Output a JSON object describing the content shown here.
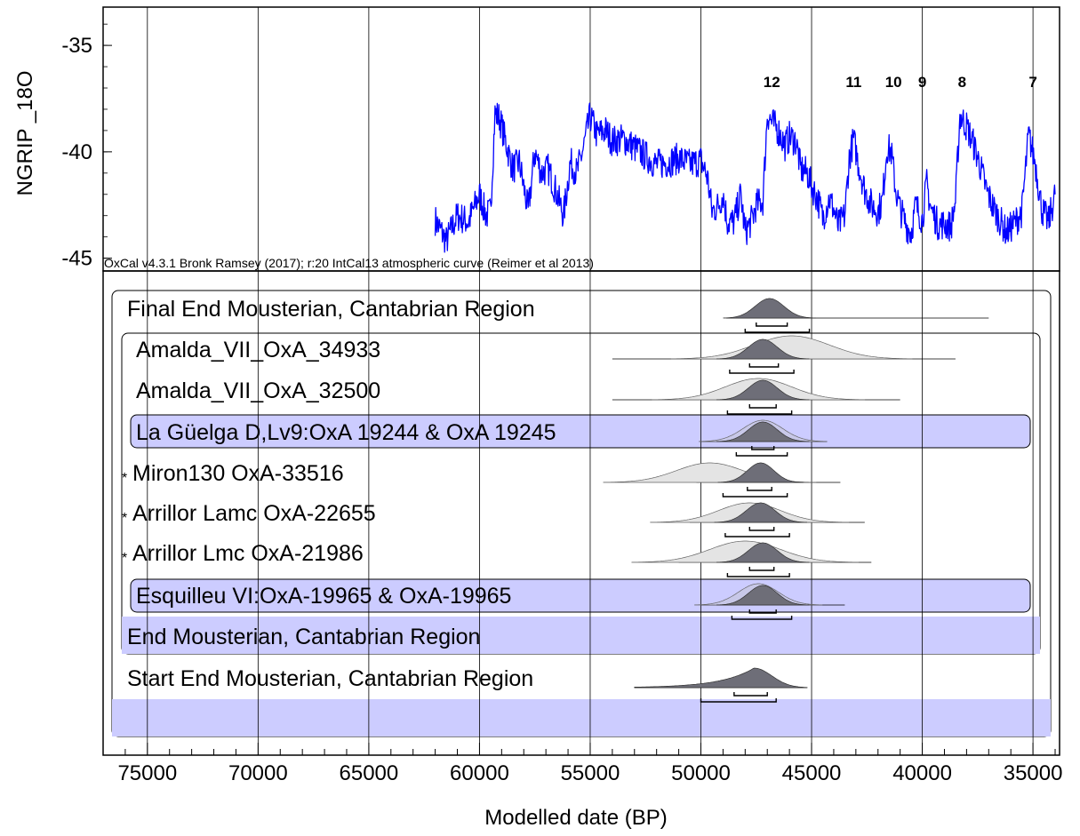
{
  "chart_data": {
    "type": "area",
    "title": "",
    "xlabel": "Modelled date (BP)",
    "ylabel": "NGRIP _18O",
    "credit": "OxCal v4.3.1 Bronk Ramsey (2017); r:20 IntCal13 atmospheric curve (Reimer et al 2013)",
    "xlim": [
      77000,
      33800
    ],
    "x_reversed": true,
    "x_ticks": [
      75000,
      70000,
      65000,
      60000,
      55000,
      50000,
      45000,
      40000,
      35000
    ],
    "x_tick_labels": [
      "75000",
      "70000",
      "65000",
      "60000",
      "55000",
      "50000",
      "45000",
      "40000",
      "35000"
    ],
    "top_panel": {
      "ylim": [
        -45.6,
        -33.2
      ],
      "y_ticks": [
        -35,
        -40,
        -45
      ],
      "y_tick_labels": [
        "-35",
        "-40",
        "-45"
      ],
      "line_color": "#0000ff",
      "ngrip_anchors": [
        [
          62000,
          -43.2
        ],
        [
          61500,
          -44.2
        ],
        [
          61000,
          -43.0
        ],
        [
          60500,
          -43.3
        ],
        [
          60000,
          -42.0
        ],
        [
          59700,
          -43.0
        ],
        [
          59500,
          -42.8
        ],
        [
          59300,
          -38.2
        ],
        [
          59100,
          -38.4
        ],
        [
          58800,
          -39.6
        ],
        [
          58500,
          -40.8
        ],
        [
          58200,
          -40.5
        ],
        [
          57800,
          -42.8
        ],
        [
          57500,
          -40.0
        ],
        [
          57200,
          -41.0
        ],
        [
          56900,
          -40.8
        ],
        [
          56500,
          -42.0
        ],
        [
          56200,
          -43.0
        ],
        [
          55900,
          -40.5
        ],
        [
          55600,
          -41.0
        ],
        [
          55300,
          -39.8
        ],
        [
          55000,
          -38.3
        ],
        [
          54700,
          -39.2
        ],
        [
          54300,
          -39.0
        ],
        [
          54000,
          -39.5
        ],
        [
          53500,
          -39.4
        ],
        [
          53000,
          -39.8
        ],
        [
          52500,
          -40.2
        ],
        [
          52000,
          -40.6
        ],
        [
          51500,
          -40.5
        ],
        [
          51000,
          -40.3
        ],
        [
          50500,
          -40.6
        ],
        [
          50000,
          -40.4
        ],
        [
          49700,
          -41.2
        ],
        [
          49500,
          -42.8
        ],
        [
          49200,
          -42.5
        ],
        [
          49000,
          -42.0
        ],
        [
          48800,
          -43.3
        ],
        [
          48500,
          -43.3
        ],
        [
          48200,
          -42.0
        ],
        [
          48000,
          -43.8
        ],
        [
          47700,
          -43.2
        ],
        [
          47500,
          -42.5
        ],
        [
          47200,
          -42.3
        ],
        [
          47000,
          -38.2
        ],
        [
          46800,
          -38.6
        ],
        [
          46500,
          -39.0
        ],
        [
          46200,
          -39.7
        ],
        [
          46000,
          -39.3
        ],
        [
          45700,
          -39.5
        ],
        [
          45500,
          -40.8
        ],
        [
          45200,
          -41.0
        ],
        [
          45000,
          -41.6
        ],
        [
          44700,
          -42.3
        ],
        [
          44500,
          -43.1
        ],
        [
          44200,
          -42.2
        ],
        [
          44000,
          -42.7
        ],
        [
          43800,
          -43.5
        ],
        [
          43500,
          -43.0
        ],
        [
          43300,
          -40.3
        ],
        [
          43100,
          -39.4
        ],
        [
          42900,
          -40.5
        ],
        [
          42600,
          -41.8
        ],
        [
          42300,
          -42.5
        ],
        [
          42000,
          -42.8
        ],
        [
          41800,
          -42.3
        ],
        [
          41600,
          -39.8
        ],
        [
          41400,
          -40.0
        ],
        [
          41200,
          -41.8
        ],
        [
          41000,
          -42.7
        ],
        [
          40700,
          -43.5
        ],
        [
          40500,
          -43.8
        ],
        [
          40300,
          -42.5
        ],
        [
          40000,
          -43.2
        ],
        [
          39800,
          -41.5
        ],
        [
          39600,
          -42.7
        ],
        [
          39300,
          -43.4
        ],
        [
          39000,
          -43.4
        ],
        [
          38700,
          -43.5
        ],
        [
          38500,
          -42.3
        ],
        [
          38300,
          -38.3
        ],
        [
          38000,
          -38.8
        ],
        [
          37700,
          -39.6
        ],
        [
          37400,
          -40.6
        ],
        [
          37100,
          -41.8
        ],
        [
          36800,
          -42.6
        ],
        [
          36500,
          -43.2
        ],
        [
          36200,
          -43.8
        ],
        [
          35800,
          -43.3
        ],
        [
          35500,
          -42.8
        ],
        [
          35200,
          -39.2
        ],
        [
          34900,
          -40.5
        ],
        [
          34600,
          -42.7
        ],
        [
          34300,
          -43.3
        ],
        [
          34000,
          -42.0
        ]
      ],
      "interstadial_labels": [
        {
          "text": "12",
          "x": 46800
        },
        {
          "text": "11",
          "x": 43100
        },
        {
          "text": "10",
          "x": 41300
        },
        {
          "text": "9",
          "x": 40000
        },
        {
          "text": "8",
          "x": 38200
        },
        {
          "text": "7",
          "x": 35000
        }
      ]
    },
    "rows": [
      {
        "label": "Final End Mousterian, Cantabrian Region",
        "star": false,
        "kind": "boundary",
        "likelihood": null,
        "posterior": {
          "mean": 46900,
          "sd": 650,
          "tail_to": 37000,
          "amp": 0.55
        },
        "range68": [
          47500,
          46100
        ],
        "range95": [
          48000,
          45100
        ]
      },
      {
        "label": "Amalda_VII_OxA_34933",
        "star": false,
        "kind": "date",
        "likelihood": {
          "mean": 45900,
          "sd": 1700,
          "from": 54000,
          "to": 38500,
          "amp": 0.65
        },
        "posterior": {
          "mean": 47200,
          "sd": 650,
          "amp": 0.55
        },
        "range68": [
          47800,
          46500
        ],
        "range95": [
          48700,
          45800
        ]
      },
      {
        "label": "Amalda_VII_OxA_32500",
        "star": false,
        "kind": "date",
        "likelihood": {
          "mean": 47400,
          "sd": 1500,
          "from": 54000,
          "to": 41000,
          "amp": 0.6
        },
        "posterior": {
          "mean": 47200,
          "sd": 650,
          "amp": 0.55
        },
        "range68": [
          47800,
          46600
        ],
        "range95": [
          48800,
          45900
        ]
      },
      {
        "label": "La Güelga D,Lv9:OxA 19244 & OxA 19245",
        "star": false,
        "kind": "combine",
        "likelihood": {
          "mean": 47200,
          "sd": 900,
          "from": 50000,
          "to": 44300,
          "amp": 0.6
        },
        "posterior": {
          "mean": 47200,
          "sd": 650,
          "amp": 0.55
        },
        "range68": [
          47700,
          46700
        ],
        "range95": [
          48400,
          46100
        ]
      },
      {
        "label": "Miron130 OxA-33516",
        "star": true,
        "kind": "date",
        "likelihood": {
          "mean": 49600,
          "sd": 1500,
          "from": 50200,
          "to": 43700,
          "amp": 0.55
        },
        "posterior": {
          "mean": 47300,
          "sd": 600,
          "amp": 0.55
        },
        "range68": [
          47900,
          46800
        ],
        "range95": [
          49000,
          46100
        ]
      },
      {
        "label": "Arrillor Lamc OxA-22655",
        "star": true,
        "kind": "date",
        "likelihood": {
          "mean": 47800,
          "sd": 1400,
          "from": 50500,
          "to": 42600,
          "amp": 0.55
        },
        "posterior": {
          "mean": 47300,
          "sd": 650,
          "amp": 0.55
        },
        "range68": [
          47800,
          46700
        ],
        "range95": [
          48900,
          46000
        ]
      },
      {
        "label": "Arrillor Lmc OxA-21986",
        "star": true,
        "kind": "date",
        "likelihood": {
          "mean": 48000,
          "sd": 1600,
          "from": 51000,
          "to": 42300,
          "amp": 0.6
        },
        "posterior": {
          "mean": 47200,
          "sd": 650,
          "amp": 0.55
        },
        "range68": [
          47800,
          46700
        ],
        "range95": [
          48800,
          46000
        ]
      },
      {
        "label": "Esquilleu VI:OxA-19965 & OxA-19965",
        "star": false,
        "kind": "combine",
        "likelihood": {
          "mean": 47400,
          "sd": 900,
          "from": 50000,
          "to": 43500,
          "amp": 0.6
        },
        "posterior": {
          "mean": 47200,
          "sd": 650,
          "amp": 0.55
        },
        "range68": [
          47800,
          46600
        ],
        "range95": [
          48600,
          45900
        ]
      },
      {
        "label": "End Mousterian, Cantabrian Region",
        "star": false,
        "kind": "phase",
        "likelihood": null,
        "posterior": null,
        "range68": null,
        "range95": null
      },
      {
        "label": "Start End Mousterian, Cantabrian Region",
        "star": false,
        "kind": "boundary",
        "likelihood": null,
        "posterior": {
          "mean": 47600,
          "sd": 800,
          "tail_from": 53000,
          "amp": 0.55,
          "rising": true
        },
        "range68": [
          48500,
          47000
        ],
        "range95": [
          50000,
          46600
        ]
      }
    ]
  }
}
